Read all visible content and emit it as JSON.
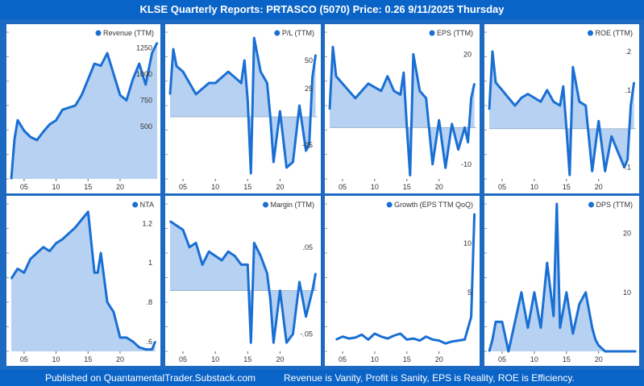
{
  "header": {
    "title": "KLSE Quarterly Reports: PRTASCO (5070)  Price: 0.26  9/11/2025 Thursday"
  },
  "footer": {
    "left": "Published on QuantamentalTrader.Substack.com",
    "right": "Revenue is Vanity, Profit is Sanity, EPS is Reality, ROE is Efficiency."
  },
  "colors": {
    "line": "#1a6fd4",
    "fill": "#a9c9ee",
    "frame": "#1c6ac2",
    "tick": "#333333"
  },
  "chart_data": [
    {
      "type": "area",
      "title": "Revenue (TTM)",
      "xticks": [
        "05",
        "10",
        "15",
        "20"
      ],
      "yticks": [
        "500",
        "750",
        "1000",
        "1250"
      ],
      "ylim": [
        0,
        1400
      ],
      "xlim": [
        2003,
        2025.8
      ],
      "x": [
        2003,
        2003.5,
        2004,
        2005,
        2006,
        2007,
        2008,
        2009,
        2010,
        2011,
        2012,
        2013,
        2014,
        2015,
        2016,
        2017,
        2018,
        2019,
        2020,
        2021,
        2022,
        2023,
        2024,
        2025,
        2025.8
      ],
      "values": [
        0,
        380,
        560,
        460,
        400,
        370,
        450,
        520,
        560,
        660,
        680,
        700,
        800,
        950,
        1100,
        1080,
        1200,
        1000,
        800,
        750,
        950,
        1100,
        900,
        1200,
        1300
      ]
    },
    {
      "type": "area",
      "title": "P/L (TTM)",
      "xticks": [
        "05",
        "10",
        "15",
        "20"
      ],
      "yticks": [
        "-25",
        "25",
        "50"
      ],
      "ylim": [
        -55,
        75
      ],
      "xlim": [
        2003,
        2025.8
      ],
      "baseline": 0,
      "x": [
        2003,
        2003.5,
        2004,
        2005,
        2006,
        2007,
        2008,
        2009,
        2010,
        2011,
        2012,
        2013,
        2014,
        2014.5,
        2015,
        2015.5,
        2016,
        2017,
        2018,
        2018.5,
        2019,
        2020,
        2021,
        2022,
        2023,
        2024,
        2024.5,
        2025,
        2025.5
      ],
      "values": [
        20,
        60,
        45,
        40,
        30,
        20,
        25,
        30,
        30,
        35,
        40,
        35,
        30,
        50,
        15,
        -50,
        70,
        40,
        30,
        0,
        -40,
        5,
        -45,
        -40,
        10,
        -30,
        -25,
        35,
        55
      ]
    },
    {
      "type": "area",
      "title": "EPS (TTM)",
      "xticks": [
        "05",
        "10",
        "15",
        "20"
      ],
      "yticks": [
        "-10",
        "20"
      ],
      "ylim": [
        -14,
        26
      ],
      "xlim": [
        2003,
        2025.8
      ],
      "baseline": 0,
      "x": [
        2003,
        2003.5,
        2004,
        2005,
        2006,
        2007,
        2008,
        2009,
        2010,
        2011,
        2012,
        2013,
        2014,
        2014.5,
        2015,
        2015.5,
        2016,
        2017,
        2018,
        2019,
        2020,
        2021,
        2022,
        2023,
        2024,
        2024.5,
        2025,
        2025.5
      ],
      "values": [
        5,
        22,
        14,
        12,
        10,
        8,
        10,
        12,
        11,
        10,
        14,
        10,
        9,
        15,
        0,
        -13,
        20,
        10,
        8,
        -10,
        2,
        -11,
        1,
        -6,
        0,
        -4,
        8,
        12
      ]
    },
    {
      "type": "area",
      "title": "ROE (TTM)",
      "xticks": [
        "05",
        "10",
        "15",
        "20"
      ],
      "yticks": [
        "-.1",
        ".1",
        ".2"
      ],
      "ylim": [
        -0.13,
        0.25
      ],
      "xlim": [
        2003,
        2025.8
      ],
      "baseline": 0,
      "x": [
        2003,
        2003.5,
        2004,
        2005,
        2006,
        2007,
        2008,
        2009,
        2010,
        2011,
        2012,
        2013,
        2014,
        2014.5,
        2015,
        2015.5,
        2016,
        2017,
        2018,
        2019,
        2020,
        2021,
        2022,
        2023,
        2024,
        2024.5,
        2025,
        2025.5
      ],
      "values": [
        0.05,
        0.2,
        0.12,
        0.1,
        0.08,
        0.06,
        0.08,
        0.09,
        0.08,
        0.07,
        0.1,
        0.07,
        0.06,
        0.11,
        0,
        -0.12,
        0.16,
        0.07,
        0.06,
        -0.11,
        0.02,
        -0.11,
        -0.02,
        -0.06,
        -0.1,
        -0.08,
        0.06,
        0.12
      ]
    },
    {
      "type": "area",
      "title": "NTA",
      "xticks": [
        "05",
        "10",
        "15",
        "20"
      ],
      "yticks": [
        ".6",
        ".8",
        "1",
        "1.2"
      ],
      "ylim": [
        0.55,
        1.3
      ],
      "xlim": [
        2003,
        2025.8
      ],
      "x": [
        2003,
        2004,
        2005,
        2006,
        2007,
        2008,
        2009,
        2010,
        2011,
        2012,
        2013,
        2014,
        2015,
        2016,
        2016.5,
        2017,
        2018,
        2019,
        2020,
        2021,
        2022,
        2023,
        2024,
        2025,
        2025.5
      ],
      "values": [
        0.92,
        0.97,
        0.95,
        1.02,
        1.05,
        1.08,
        1.06,
        1.1,
        1.12,
        1.15,
        1.18,
        1.22,
        1.26,
        0.95,
        0.95,
        1.05,
        0.8,
        0.75,
        0.62,
        0.62,
        0.6,
        0.57,
        0.56,
        0.56,
        0.6
      ]
    },
    {
      "type": "area",
      "title": "Margin (TTM)",
      "xticks": [
        "05",
        "10",
        "15",
        "20"
      ],
      "yticks": [
        "-.05",
        ".05"
      ],
      "ylim": [
        -0.07,
        0.1
      ],
      "xlim": [
        2003,
        2025.8
      ],
      "baseline": 0,
      "x": [
        2003,
        2004,
        2005,
        2006,
        2007,
        2008,
        2009,
        2010,
        2011,
        2012,
        2013,
        2014,
        2015,
        2015.5,
        2016,
        2017,
        2018,
        2018.5,
        2019,
        2020,
        2021,
        2022,
        2023,
        2024,
        2025,
        2025.5
      ],
      "values": [
        0.08,
        0.075,
        0.07,
        0.05,
        0.055,
        0.03,
        0.045,
        0.04,
        0.035,
        0.045,
        0.04,
        0.03,
        0.03,
        -0.06,
        0.055,
        0.04,
        0.02,
        -0.01,
        -0.06,
        0.0,
        -0.06,
        -0.05,
        0.01,
        -0.03,
        0.0,
        0.02
      ]
    },
    {
      "type": "line",
      "title": "Growth (EPS TTM QoQ)",
      "xticks": [
        "05",
        "10",
        "15",
        "20"
      ],
      "yticks": [
        "5",
        "10"
      ],
      "ylim": [
        -1,
        14
      ],
      "xlim": [
        2003,
        2025.8
      ],
      "baseline": 0,
      "x": [
        2004,
        2005,
        2006,
        2007,
        2008,
        2009,
        2010,
        2011,
        2012,
        2013,
        2014,
        2015,
        2016,
        2017,
        2018,
        2019,
        2020,
        2021,
        2022,
        2023,
        2024,
        2025,
        2025.5
      ],
      "values": [
        0.2,
        0.5,
        0.3,
        0.4,
        0.7,
        0.2,
        0.8,
        0.5,
        0.3,
        0.6,
        0.8,
        0.2,
        0.3,
        0.1,
        0.5,
        0.2,
        0.1,
        -0.2,
        0,
        0.1,
        0.2,
        2.5,
        13
      ]
    },
    {
      "type": "area",
      "title": "DPS (TTM)",
      "xticks": [
        "05",
        "10",
        "15",
        "20"
      ],
      "yticks": [
        "10",
        "20"
      ],
      "ylim": [
        0,
        25
      ],
      "xlim": [
        2003,
        2025.8
      ],
      "x": [
        2003,
        2003.5,
        2004,
        2005,
        2006,
        2007,
        2008,
        2009,
        2010,
        2011,
        2012,
        2013,
        2013.5,
        2014,
        2015,
        2016,
        2017,
        2018,
        2019,
        2019.5,
        2020,
        2021,
        2022,
        2023,
        2024,
        2025,
        2025.8
      ],
      "values": [
        0,
        2,
        5,
        5,
        0,
        5,
        10,
        4,
        10,
        4,
        15,
        6,
        25,
        4,
        10,
        3,
        8,
        10,
        4,
        2,
        1,
        0,
        0,
        0,
        0,
        0,
        0
      ]
    }
  ]
}
